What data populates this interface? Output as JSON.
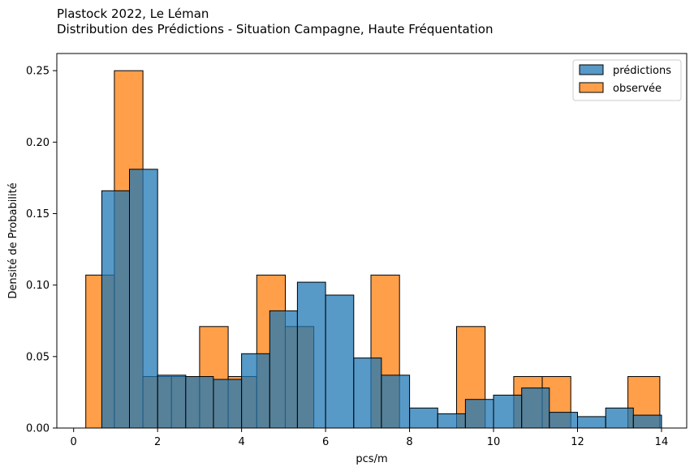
{
  "chart_data": {
    "type": "bar",
    "title": "Plastock 2022, Le Léman",
    "subtitle": "Distribution des Prédictions - Situation Campagne, Haute Fréquentation",
    "xlabel": "pcs/m",
    "ylabel": "Densité de Probabilité",
    "xlim": [
      -0.4,
      14.6
    ],
    "ylim": [
      0,
      0.262
    ],
    "xticks": [
      0,
      2,
      4,
      6,
      8,
      10,
      12,
      14
    ],
    "xtick_labels": [
      "0",
      "2",
      "4",
      "6",
      "8",
      "10",
      "12",
      "14"
    ],
    "yticks": [
      0.0,
      0.05,
      0.1,
      0.15,
      0.2,
      0.25
    ],
    "ytick_labels": [
      "0.00",
      "0.05",
      "0.10",
      "0.15",
      "0.20",
      "0.25"
    ],
    "grid": false,
    "legend_position": "top-right",
    "series": [
      {
        "name": "prédictions",
        "color": "#1f77b4",
        "bins": [
          {
            "x0": 0.67,
            "x1": 1.33,
            "value": 0.166
          },
          {
            "x0": 1.33,
            "x1": 2.0,
            "value": 0.181
          },
          {
            "x0": 2.0,
            "x1": 2.67,
            "value": 0.037
          },
          {
            "x0": 2.67,
            "x1": 3.33,
            "value": 0.036
          },
          {
            "x0": 3.33,
            "x1": 4.0,
            "value": 0.034
          },
          {
            "x0": 4.0,
            "x1": 4.67,
            "value": 0.052
          },
          {
            "x0": 4.67,
            "x1": 5.33,
            "value": 0.082
          },
          {
            "x0": 5.33,
            "x1": 6.0,
            "value": 0.102
          },
          {
            "x0": 6.0,
            "x1": 6.67,
            "value": 0.093
          },
          {
            "x0": 6.67,
            "x1": 7.33,
            "value": 0.049
          },
          {
            "x0": 7.33,
            "x1": 8.0,
            "value": 0.037
          },
          {
            "x0": 8.0,
            "x1": 8.67,
            "value": 0.014
          },
          {
            "x0": 8.67,
            "x1": 9.33,
            "value": 0.01
          },
          {
            "x0": 9.33,
            "x1": 10.0,
            "value": 0.02
          },
          {
            "x0": 10.0,
            "x1": 10.67,
            "value": 0.023
          },
          {
            "x0": 10.67,
            "x1": 11.33,
            "value": 0.028
          },
          {
            "x0": 11.33,
            "x1": 12.0,
            "value": 0.011
          },
          {
            "x0": 12.0,
            "x1": 12.67,
            "value": 0.008
          },
          {
            "x0": 12.67,
            "x1": 13.33,
            "value": 0.014
          },
          {
            "x0": 13.33,
            "x1": 14.0,
            "value": 0.009
          }
        ]
      },
      {
        "name": "observée",
        "color": "#ff7f0e",
        "bins": [
          {
            "x0": 0.29,
            "x1": 0.97,
            "value": 0.107
          },
          {
            "x0": 0.97,
            "x1": 1.65,
            "value": 0.25
          },
          {
            "x0": 1.65,
            "x1": 2.33,
            "value": 0.036
          },
          {
            "x0": 2.33,
            "x1": 3.0,
            "value": 0.036
          },
          {
            "x0": 3.0,
            "x1": 3.68,
            "value": 0.071
          },
          {
            "x0": 3.68,
            "x1": 4.36,
            "value": 0.036
          },
          {
            "x0": 4.36,
            "x1": 5.04,
            "value": 0.107
          },
          {
            "x0": 5.04,
            "x1": 5.72,
            "value": 0.071
          },
          {
            "x0": 5.72,
            "x1": 6.4,
            "value": 0.0
          },
          {
            "x0": 6.4,
            "x1": 7.08,
            "value": 0.0
          },
          {
            "x0": 7.08,
            "x1": 7.76,
            "value": 0.107
          },
          {
            "x0": 7.76,
            "x1": 8.44,
            "value": 0.0
          },
          {
            "x0": 8.44,
            "x1": 9.12,
            "value": 0.0
          },
          {
            "x0": 9.12,
            "x1": 9.8,
            "value": 0.071
          },
          {
            "x0": 9.8,
            "x1": 10.48,
            "value": 0.0
          },
          {
            "x0": 10.48,
            "x1": 11.16,
            "value": 0.036
          },
          {
            "x0": 11.16,
            "x1": 11.84,
            "value": 0.036
          },
          {
            "x0": 11.84,
            "x1": 12.52,
            "value": 0.0
          },
          {
            "x0": 12.52,
            "x1": 13.2,
            "value": 0.0
          },
          {
            "x0": 13.2,
            "x1": 13.96,
            "value": 0.036
          }
        ]
      }
    ]
  }
}
